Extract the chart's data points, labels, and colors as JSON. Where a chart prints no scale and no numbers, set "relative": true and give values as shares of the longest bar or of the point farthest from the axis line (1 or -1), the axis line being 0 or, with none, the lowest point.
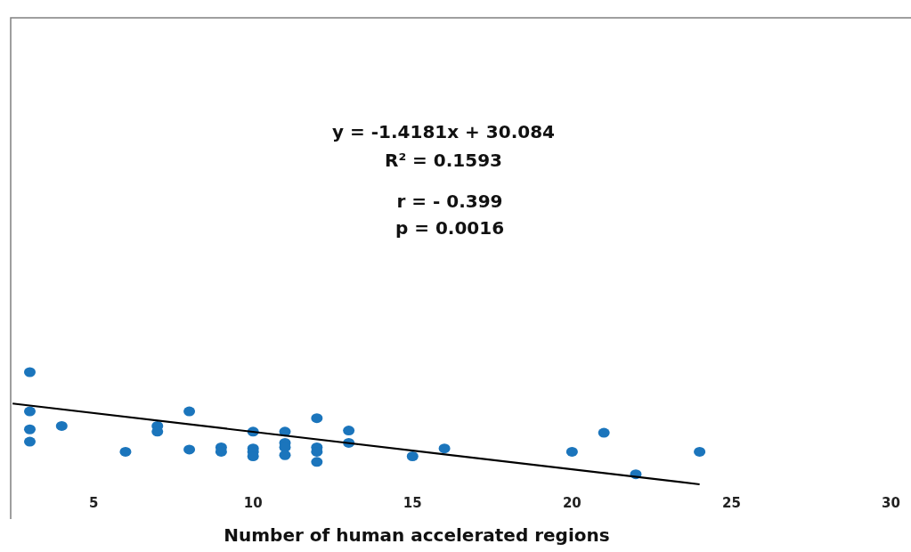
{
  "chart_data": {
    "type": "scatter",
    "relative": true,
    "xlabel": "Number of human accelerated regions",
    "xlim": [
      2.4,
      30.6
    ],
    "xticks": [
      5,
      10,
      15,
      20,
      25,
      30
    ],
    "grid": false,
    "marker": "circle",
    "annotations": [
      "y = -1.4181x + 30.084",
      "R² = 0.1593",
      "r = - 0.399",
      "p = 0.0016"
    ],
    "series": [
      {
        "color": "#1b75bc",
        "x": [
          3,
          3,
          3,
          3,
          4,
          6,
          7,
          7,
          8,
          8,
          9,
          9,
          10,
          10,
          10,
          10,
          11,
          11,
          11,
          11,
          12,
          12,
          12,
          12,
          13,
          13,
          15,
          16,
          20,
          21,
          22,
          24
        ],
        "values": [
          1,
          0.65,
          0.49,
          0.38,
          0.52,
          0.29,
          0.52,
          0.47,
          0.65,
          0.31,
          0.33,
          0.29,
          0.47,
          0.32,
          0.29,
          0.25,
          0.47,
          0.37,
          0.33,
          0.26,
          0.59,
          0.33,
          0.29,
          0.2,
          0.48,
          0.37,
          0.25,
          0.32,
          0.29,
          0.46,
          0.09,
          0.29
        ]
      },
      {
        "type": "line",
        "marker": "none",
        "color": "#000000",
        "x": [
          2.46,
          24
        ],
        "values": [
          0.72,
          0
        ]
      }
    ]
  }
}
